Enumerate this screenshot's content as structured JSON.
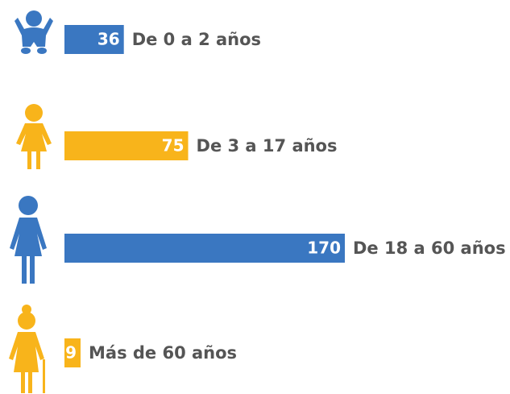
{
  "chart_data": {
    "type": "bar",
    "orientation": "horizontal",
    "categories": [
      "De 0 a 2 años",
      "De 3 a 17 años",
      "De 18 a 60 años",
      "Más de 60 años"
    ],
    "values": [
      36,
      75,
      170,
      9
    ],
    "colors": [
      "#3a77c1",
      "#f8b41b",
      "#3a77c1",
      "#f8b41b"
    ]
  }
}
